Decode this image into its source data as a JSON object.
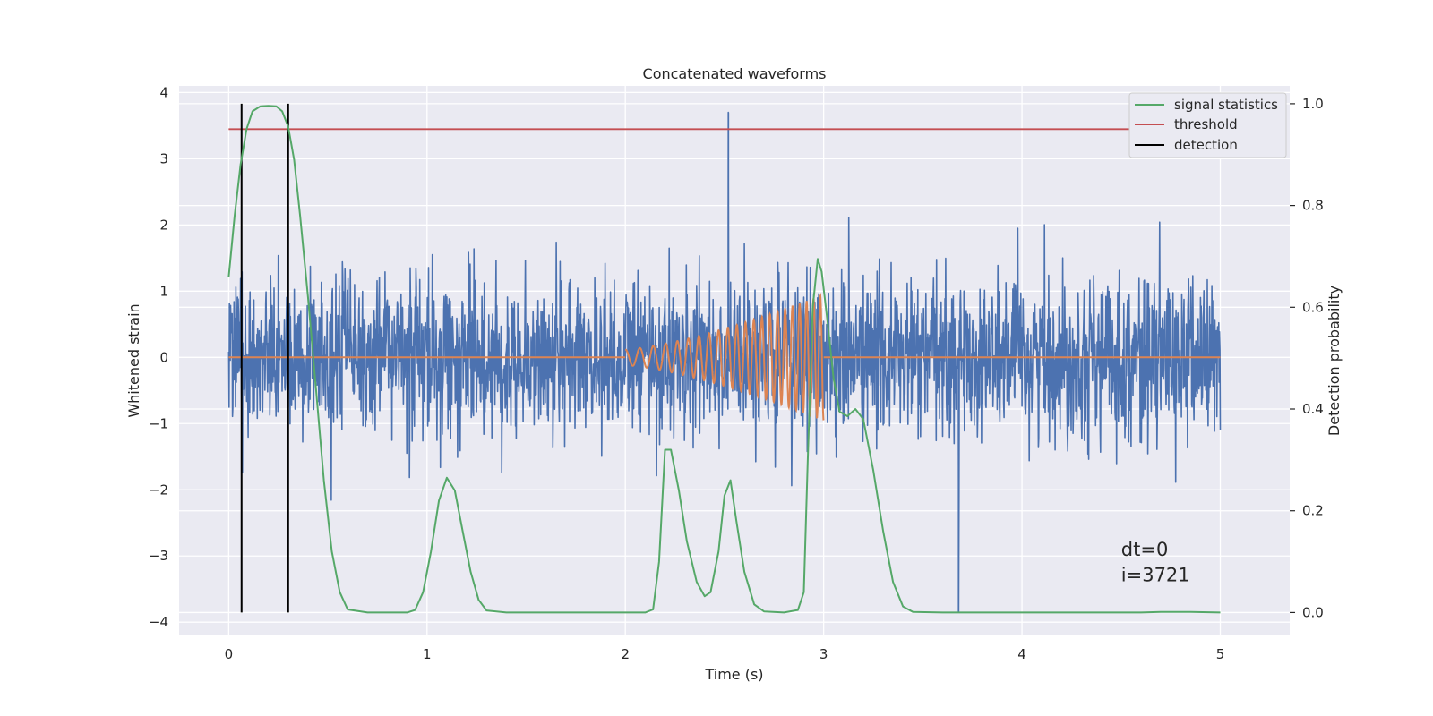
{
  "chart_data": {
    "type": "line",
    "title": "Concatenated waveforms",
    "xlabel": "Time (s)",
    "ylabel": "Whitened strain",
    "ylabel_right": "Detection probability",
    "xlim": [
      -0.25,
      5.35
    ],
    "ylim": [
      -4.2,
      4.1
    ],
    "ylim_right": [
      -0.045,
      1.035
    ],
    "x_ticks": [
      0,
      1,
      2,
      3,
      4,
      5
    ],
    "y_ticks": [
      -4,
      -3,
      -2,
      -1,
      0,
      1,
      2,
      3,
      4
    ],
    "y_ticks_right": [
      0.0,
      0.2,
      0.4,
      0.6,
      0.8,
      1.0
    ],
    "x_tick_labels": [
      "0",
      "1",
      "2",
      "3",
      "4",
      "5"
    ],
    "y_tick_labels": [
      "−4",
      "−3",
      "−2",
      "−1",
      "0",
      "1",
      "2",
      "3",
      "4"
    ],
    "y_tick_labels_right": [
      "0.0",
      "0.2",
      "0.4",
      "0.6",
      "0.8",
      "1.0"
    ],
    "grid": true,
    "legend_position": "top-right",
    "colors": {
      "background": "#eaeaf2",
      "grid": "#ffffff",
      "noise": "#4c72b0",
      "template": "#dd8452",
      "signal_statistics": "#55a868",
      "threshold": "#c44e52",
      "detection": "#000000"
    },
    "legend": [
      {
        "name": "signal statistics",
        "color": "#55a868"
      },
      {
        "name": "threshold",
        "color": "#c44e52"
      },
      {
        "name": "detection",
        "color": "#000000"
      }
    ],
    "series": [
      {
        "name": "whitened strain",
        "axis": "left",
        "x_range": [
          0,
          5
        ],
        "noise_std": 0.6,
        "highest_spike": {
          "x": 2.52,
          "y": 3.7
        },
        "lowest_spike": {
          "x": 3.68,
          "y": -3.85
        }
      },
      {
        "name": "injected waveform",
        "axis": "left",
        "flat_segments": [
          {
            "x": [
              0,
              2
            ],
            "y": 0
          },
          {
            "x": [
              3,
              5
            ],
            "y": 0
          }
        ],
        "chirp": {
          "x_start": 2.0,
          "x_end": 3.0,
          "start_amplitude": 0.12,
          "end_amplitude": 0.95,
          "start_frequency_hz": 13,
          "end_frequency_hz": 30
        }
      },
      {
        "name": "signal statistics",
        "axis": "right",
        "points": [
          [
            0.0,
            0.66
          ],
          [
            0.03,
            0.78
          ],
          [
            0.06,
            0.88
          ],
          [
            0.09,
            0.95
          ],
          [
            0.12,
            0.985
          ],
          [
            0.16,
            0.995
          ],
          [
            0.2,
            0.996
          ],
          [
            0.24,
            0.995
          ],
          [
            0.27,
            0.985
          ],
          [
            0.3,
            0.955
          ],
          [
            0.33,
            0.89
          ],
          [
            0.36,
            0.78
          ],
          [
            0.4,
            0.62
          ],
          [
            0.44,
            0.44
          ],
          [
            0.48,
            0.26
          ],
          [
            0.52,
            0.12
          ],
          [
            0.56,
            0.04
          ],
          [
            0.6,
            0.006
          ],
          [
            0.7,
            0.0
          ],
          [
            0.9,
            0.0
          ],
          [
            0.94,
            0.005
          ],
          [
            0.98,
            0.04
          ],
          [
            1.02,
            0.12
          ],
          [
            1.06,
            0.22
          ],
          [
            1.1,
            0.265
          ],
          [
            1.14,
            0.24
          ],
          [
            1.18,
            0.16
          ],
          [
            1.22,
            0.08
          ],
          [
            1.26,
            0.025
          ],
          [
            1.3,
            0.004
          ],
          [
            1.4,
            0.0
          ],
          [
            2.1,
            0.0
          ],
          [
            2.14,
            0.006
          ],
          [
            2.17,
            0.1
          ],
          [
            2.2,
            0.32
          ],
          [
            2.23,
            0.32
          ],
          [
            2.27,
            0.24
          ],
          [
            2.31,
            0.14
          ],
          [
            2.36,
            0.06
          ],
          [
            2.4,
            0.032
          ],
          [
            2.43,
            0.04
          ],
          [
            2.47,
            0.12
          ],
          [
            2.5,
            0.23
          ],
          [
            2.53,
            0.26
          ],
          [
            2.56,
            0.18
          ],
          [
            2.6,
            0.08
          ],
          [
            2.65,
            0.016
          ],
          [
            2.7,
            0.002
          ],
          [
            2.8,
            0.0
          ],
          [
            2.87,
            0.005
          ],
          [
            2.9,
            0.04
          ],
          [
            2.92,
            0.3
          ],
          [
            2.945,
            0.6
          ],
          [
            2.97,
            0.695
          ],
          [
            2.99,
            0.67
          ],
          [
            3.02,
            0.57
          ],
          [
            3.05,
            0.46
          ],
          [
            3.08,
            0.395
          ],
          [
            3.12,
            0.386
          ],
          [
            3.16,
            0.4
          ],
          [
            3.2,
            0.38
          ],
          [
            3.25,
            0.28
          ],
          [
            3.3,
            0.16
          ],
          [
            3.35,
            0.06
          ],
          [
            3.4,
            0.012
          ],
          [
            3.45,
            0.001
          ],
          [
            3.6,
            0.0
          ],
          [
            4.6,
            0.0
          ],
          [
            4.7,
            0.001
          ],
          [
            4.85,
            0.001
          ],
          [
            5.0,
            0.0
          ]
        ]
      },
      {
        "name": "threshold",
        "axis": "right",
        "points": [
          [
            0,
            0.95
          ],
          [
            5,
            0.95
          ]
        ]
      },
      {
        "name": "detection",
        "axis": "right",
        "vlines": [
          0.065,
          0.3
        ],
        "y_range": [
          0.0,
          1.0
        ]
      }
    ],
    "annotations": [
      {
        "text": "dt=0",
        "x": 4.5,
        "y": -3.0
      },
      {
        "text": "i=3721",
        "x": 4.5,
        "y": -3.38
      }
    ]
  }
}
